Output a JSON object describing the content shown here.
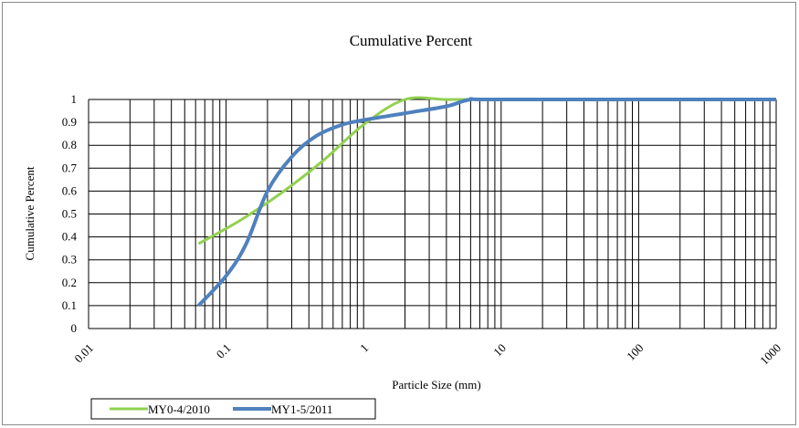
{
  "chart_data": {
    "type": "line",
    "title": "Cumulative Percent",
    "xlabel": "Particle Size (mm)",
    "ylabel": "Cumulative Percent",
    "xscale": "log",
    "xlim": [
      0.01,
      1000
    ],
    "ylim": [
      0,
      1
    ],
    "grid": true,
    "legend_position": "bottom-left",
    "x_tick_labels": [
      "0.01",
      "0.1",
      "1",
      "10",
      "100",
      "1000"
    ],
    "y_tick_labels": [
      "0",
      "0.1",
      "0.2",
      "0.3",
      "0.4",
      "0.5",
      "0.6",
      "0.7",
      "0.8",
      "0.9",
      "1"
    ],
    "series": [
      {
        "name": "MY0-4/2010",
        "color": "#92d050",
        "x": [
          0.063,
          0.125,
          0.25,
          0.5,
          1,
          2,
          4,
          8,
          16,
          1000
        ],
        "y": [
          0.37,
          0.47,
          0.59,
          0.73,
          0.89,
          1.0,
          1.0,
          1.0,
          1.0,
          1.0
        ]
      },
      {
        "name": "MY1-5/2011",
        "color": "#4f81bd",
        "x": [
          0.063,
          0.1,
          0.14,
          0.2,
          0.3,
          0.45,
          0.7,
          1,
          2,
          4,
          6,
          10,
          1000
        ],
        "y": [
          0.1,
          0.23,
          0.37,
          0.6,
          0.75,
          0.84,
          0.89,
          0.91,
          0.94,
          0.97,
          1.0,
          1.0,
          1.0
        ]
      }
    ]
  }
}
